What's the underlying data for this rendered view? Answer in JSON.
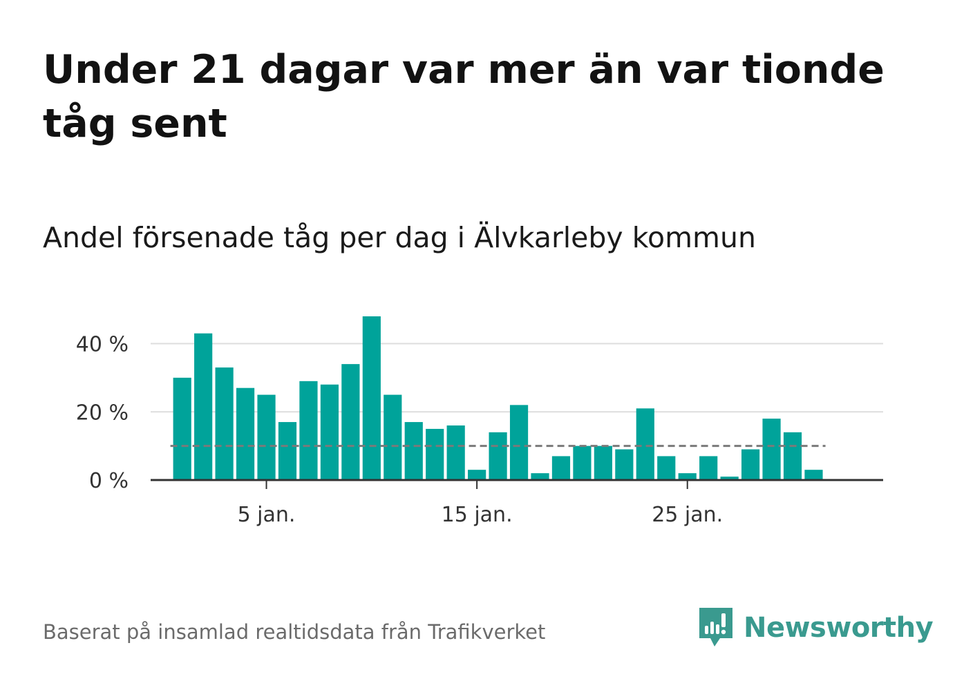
{
  "chart_data": {
    "type": "bar",
    "title": "Under 21 dagar var mer än var tionde tåg sent",
    "subtitle": "Andel försenade tåg per dag i Älvkarleby kommun",
    "x": [
      1,
      2,
      3,
      4,
      5,
      6,
      7,
      8,
      9,
      10,
      11,
      12,
      13,
      14,
      15,
      16,
      17,
      18,
      19,
      20,
      21,
      22,
      23,
      24,
      25,
      26,
      27,
      28,
      29,
      30,
      31
    ],
    "values": [
      30,
      43,
      33,
      27,
      25,
      17,
      29,
      28,
      34,
      48,
      25,
      17,
      15,
      16,
      3,
      14,
      22,
      2,
      7,
      10,
      10,
      9,
      21,
      7,
      2,
      7,
      1,
      9,
      18,
      14,
      3
    ],
    "reference_line": 10,
    "x_ticks": [
      {
        "value": 5,
        "label": "5 jan."
      },
      {
        "value": 15,
        "label": "15 jan."
      },
      {
        "value": 25,
        "label": "25 jan."
      }
    ],
    "y_ticks": [
      {
        "value": 0,
        "label": "0 %"
      },
      {
        "value": 20,
        "label": "20 %"
      },
      {
        "value": 40,
        "label": "40 %"
      }
    ],
    "ylim": [
      0,
      48
    ],
    "xlim": [
      -0.5,
      34.3
    ],
    "grid": true,
    "colors": {
      "bar": "#00a39a",
      "grid": "#dddddd",
      "axis": "#333333",
      "reference_line": "#7a7a7a"
    }
  },
  "footer": {
    "source": "Baserat på insamlad realtidsdata från Trafikverket",
    "brand": "Newsworthy",
    "brand_icon": "newsworthy-logo-icon",
    "brand_color": "#3a9a8f"
  }
}
